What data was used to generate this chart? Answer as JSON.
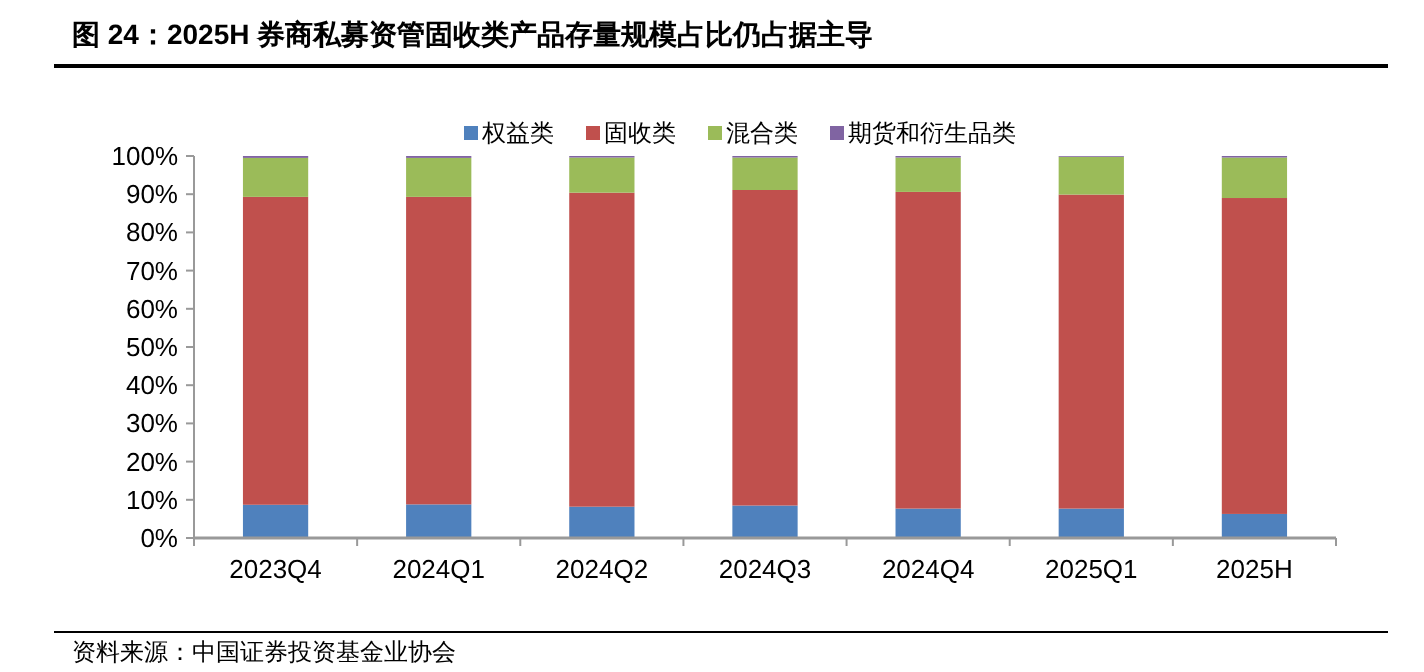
{
  "chart_data": {
    "type": "bar",
    "stacked": true,
    "title": "图 24：2025H 券商私募资管固收类产品存量规模占比仍占据主导",
    "categories": [
      "2023Q4",
      "2024Q1",
      "2024Q2",
      "2024Q3",
      "2024Q4",
      "2025Q1",
      "2025H"
    ],
    "series": [
      {
        "name": "权益类",
        "color": "#4f81bd",
        "values": [
          8.7,
          8.8,
          8.2,
          8.5,
          7.7,
          7.7,
          6.3
        ]
      },
      {
        "name": "固收类",
        "color": "#c0504d",
        "values": [
          80.6,
          80.5,
          82.2,
          82.6,
          82.9,
          82.2,
          82.7
        ]
      },
      {
        "name": "混合类",
        "color": "#9bbb59",
        "values": [
          10.2,
          10.2,
          9.2,
          8.5,
          9.0,
          9.9,
          10.6
        ]
      },
      {
        "name": "期货和衍生品类",
        "color": "#8064a2",
        "values": [
          0.5,
          0.5,
          0.4,
          0.4,
          0.4,
          0.2,
          0.4
        ]
      }
    ],
    "ylim": [
      0,
      100
    ],
    "yticks": [
      {
        "value": 0,
        "label": "0%"
      },
      {
        "value": 10,
        "label": "10%"
      },
      {
        "value": 20,
        "label": "20%"
      },
      {
        "value": 30,
        "label": "30%"
      },
      {
        "value": 40,
        "label": "40%"
      },
      {
        "value": 50,
        "label": "50%"
      },
      {
        "value": 60,
        "label": "60%"
      },
      {
        "value": 70,
        "label": "70%"
      },
      {
        "value": 80,
        "label": "80%"
      },
      {
        "value": 90,
        "label": "90%"
      },
      {
        "value": 100,
        "label": "100%"
      }
    ],
    "legend": "top",
    "annotations": [
      "资料来源：中国证券投资基金业协会"
    ]
  }
}
